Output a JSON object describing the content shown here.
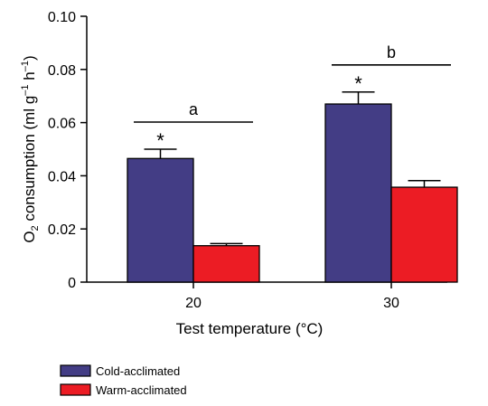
{
  "chart_data": {
    "type": "bar",
    "categories": [
      "20",
      "30"
    ],
    "series": [
      {
        "name": "Cold-acclimated",
        "values": [
          0.0465,
          0.067
        ],
        "errors": [
          0.0035,
          0.0045
        ],
        "color": "#433d85"
      },
      {
        "name": "Warm-acclimated",
        "values": [
          0.0137,
          0.0357
        ],
        "errors": [
          0.0008,
          0.0025
        ],
        "color": "#ec1c24"
      }
    ],
    "title": "",
    "xlabel": "Test temperature (°C)",
    "ylabel": {
      "prefix": "O",
      "sub": "2",
      "middle": " consumption (ml g",
      "sup1": "–1",
      "middle2": " h",
      "sup2": "–1",
      "suffix": ")"
    },
    "ylim": [
      0,
      0.1
    ],
    "yticks": [
      "0",
      "0.02",
      "0.04",
      "0.06",
      "0.08",
      "0.10"
    ],
    "grid": false,
    "legend_position": "bottom-left",
    "annotations": {
      "significance_star": "*",
      "group_labels": [
        "a",
        "b"
      ]
    }
  }
}
